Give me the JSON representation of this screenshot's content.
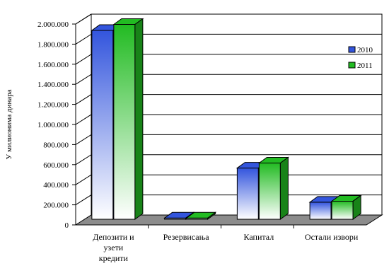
{
  "chart_data": {
    "type": "bar",
    "style": "3d-clustered-column",
    "categories": [
      "Депозити и\nузети\nкредити",
      "Резервисања",
      "Капитал",
      "Остали извори"
    ],
    "series": [
      {
        "name": "2010",
        "color": "#3355dd",
        "values": [
          1880000,
          12000,
          510000,
          170000
        ]
      },
      {
        "name": "2011",
        "color": "#22bb22",
        "values": [
          1940000,
          12000,
          560000,
          180000
        ]
      }
    ],
    "ylabel": "У милионима динара",
    "ylim": [
      0,
      2000000
    ],
    "ytick_labels": [
      "0",
      "200.000",
      "400.000",
      "600.000",
      "800.000",
      "1.000.000",
      "1.200.000",
      "1.400.000",
      "1.600.000",
      "1.800.000",
      "2.000.000"
    ],
    "grid": true,
    "legend_position": "right",
    "floor_color": "#8c8c8c"
  }
}
